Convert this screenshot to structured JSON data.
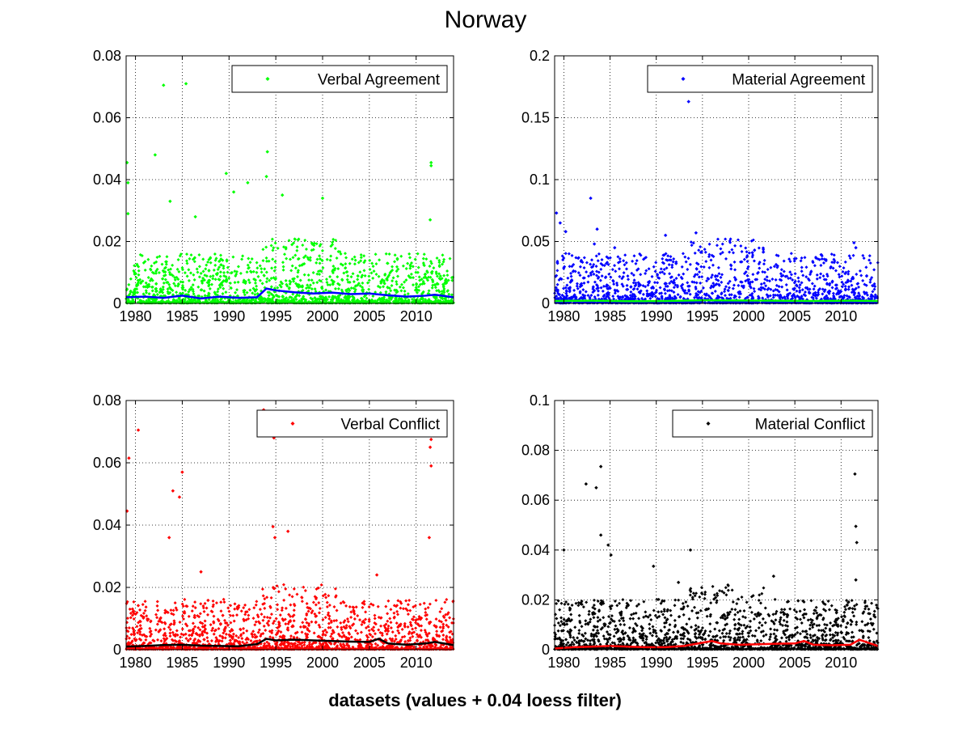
{
  "figure": {
    "title": "Norway",
    "xlabel": "datasets (values + 0.04 loess filter)"
  },
  "chart_data": [
    {
      "type": "scatter",
      "title": "",
      "xlabel": "",
      "ylabel": "",
      "xlim": [
        1979,
        2014
      ],
      "ylim": [
        0,
        0.08
      ],
      "xticks": [
        1980,
        1985,
        1990,
        1995,
        2000,
        2005,
        2010
      ],
      "yticks": [
        0,
        0.02,
        0.04,
        0.06,
        0.08
      ],
      "ytick_labels": [
        "0",
        "0.02",
        "0.04",
        "0.06",
        "0.08"
      ],
      "grid": true,
      "legend_position": "top-right",
      "series": [
        {
          "name": "Verbal Agreement",
          "color": "#00ff00",
          "marker": "diamond",
          "outliers": [
            [
              1979.1,
              0.0455
            ],
            [
              1979.2,
              0.039
            ],
            [
              1979.2,
              0.029
            ],
            [
              1982.1,
              0.048
            ],
            [
              1983.0,
              0.0705
            ],
            [
              1985.4,
              0.071
            ],
            [
              1983.7,
              0.033
            ],
            [
              1989.7,
              0.042
            ],
            [
              1994.1,
              0.049
            ],
            [
              1994.0,
              0.041
            ],
            [
              1995.7,
              0.035
            ],
            [
              1990.5,
              0.036
            ],
            [
              2000.0,
              0.034
            ],
            [
              2011.6,
              0.0455
            ],
            [
              2011.6,
              0.0445
            ],
            [
              2011.5,
              0.027
            ],
            [
              1986.4,
              0.028
            ],
            [
              1992.0,
              0.039
            ]
          ]
        },
        {
          "name": "",
          "color": "#0000ff",
          "line": true,
          "x": [
            1979,
            1981,
            1983,
            1985,
            1987,
            1989,
            1991,
            1993,
            1994,
            1995,
            1997,
            1999,
            2001,
            2003,
            2005,
            2007,
            2009,
            2011,
            2012,
            2014
          ],
          "y": [
            0.002,
            0.0022,
            0.0018,
            0.0025,
            0.0016,
            0.0022,
            0.0018,
            0.002,
            0.0048,
            0.0042,
            0.0036,
            0.0032,
            0.0035,
            0.003,
            0.0032,
            0.0026,
            0.0022,
            0.0025,
            0.0028,
            0.002
          ]
        }
      ]
    },
    {
      "type": "scatter",
      "title": "",
      "xlabel": "",
      "ylabel": "",
      "xlim": [
        1979,
        2014
      ],
      "ylim": [
        0,
        0.2
      ],
      "xticks": [
        1980,
        1985,
        1990,
        1995,
        2000,
        2005,
        2010
      ],
      "yticks": [
        0,
        0.05,
        0.1,
        0.15,
        0.2
      ],
      "ytick_labels": [
        "0",
        "0.05",
        "0.1",
        "0.15",
        "0.2"
      ],
      "grid": true,
      "legend_position": "top-right",
      "series": [
        {
          "name": "Material Agreement",
          "color": "#0000ff",
          "marker": "diamond",
          "outliers": [
            [
              1979.2,
              0.073
            ],
            [
              1979.6,
              0.065
            ],
            [
              1980.2,
              0.058
            ],
            [
              1982.9,
              0.085
            ],
            [
              1983.6,
              0.06
            ],
            [
              1993.5,
              0.163
            ],
            [
              1994.3,
              0.057
            ],
            [
              1991.0,
              0.055
            ],
            [
              1985.5,
              0.045
            ],
            [
              2000.4,
              0.041
            ],
            [
              2011.4,
              0.049
            ],
            [
              2011.6,
              0.045
            ],
            [
              1983.3,
              0.048
            ]
          ]
        },
        {
          "name": "",
          "color": "#00ff00",
          "line": true,
          "x": [
            1979,
            1983,
            1987,
            1991,
            1995,
            1999,
            2003,
            2007,
            2011,
            2014
          ],
          "y": [
            0.002,
            0.0022,
            0.0018,
            0.002,
            0.0025,
            0.0024,
            0.0022,
            0.002,
            0.0022,
            0.002
          ]
        }
      ]
    },
    {
      "type": "scatter",
      "title": "",
      "xlabel": "",
      "ylabel": "",
      "xlim": [
        1979,
        2014
      ],
      "ylim": [
        0,
        0.08
      ],
      "xticks": [
        1980,
        1985,
        1990,
        1995,
        2000,
        2005,
        2010
      ],
      "yticks": [
        0,
        0.02,
        0.04,
        0.06,
        0.08
      ],
      "ytick_labels": [
        "0",
        "0.02",
        "0.04",
        "0.06",
        "0.08"
      ],
      "grid": true,
      "legend_position": "top-right",
      "series": [
        {
          "name": "Verbal Conflict",
          "color": "#ff0000",
          "marker": "diamond",
          "outliers": [
            [
              1979.1,
              0.0445
            ],
            [
              1979.3,
              0.0615
            ],
            [
              1980.3,
              0.0705
            ],
            [
              1984.0,
              0.051
            ],
            [
              1984.7,
              0.049
            ],
            [
              1985.0,
              0.057
            ],
            [
              1983.6,
              0.036
            ],
            [
              1993.7,
              0.077
            ],
            [
              1994.8,
              0.068
            ],
            [
              1994.7,
              0.0395
            ],
            [
              1994.9,
              0.036
            ],
            [
              1996.3,
              0.038
            ],
            [
              2011.6,
              0.0675
            ],
            [
              2011.5,
              0.065
            ],
            [
              2011.6,
              0.059
            ],
            [
              2011.4,
              0.036
            ],
            [
              1987.0,
              0.025
            ],
            [
              2005.8,
              0.024
            ]
          ]
        },
        {
          "name": "",
          "color": "#000000",
          "line": true,
          "x": [
            1979,
            1981,
            1983,
            1985,
            1987,
            1989,
            1991,
            1993,
            1994,
            1995,
            1997,
            1999,
            2001,
            2003,
            2005,
            2006,
            2007,
            2009,
            2011,
            2012,
            2014
          ],
          "y": [
            0.001,
            0.0012,
            0.0015,
            0.0016,
            0.0013,
            0.0012,
            0.0011,
            0.0018,
            0.0035,
            0.003,
            0.0032,
            0.003,
            0.0028,
            0.0026,
            0.0025,
            0.0035,
            0.002,
            0.0016,
            0.002,
            0.0025,
            0.0015
          ]
        }
      ]
    },
    {
      "type": "scatter",
      "title": "",
      "xlabel": "",
      "ylabel": "",
      "xlim": [
        1979,
        2014
      ],
      "ylim": [
        0,
        0.1
      ],
      "xticks": [
        1980,
        1985,
        1990,
        1995,
        2000,
        2005,
        2010
      ],
      "yticks": [
        0,
        0.02,
        0.04,
        0.06,
        0.08,
        0.1
      ],
      "ytick_labels": [
        "0",
        "0.02",
        "0.04",
        "0.06",
        "0.08",
        "0.1"
      ],
      "grid": true,
      "legend_position": "top-right",
      "series": [
        {
          "name": "Material Conflict",
          "color": "#000000",
          "marker": "diamond",
          "outliers": [
            [
              1980.0,
              0.04
            ],
            [
              1982.4,
              0.0665
            ],
            [
              1983.5,
              0.065
            ],
            [
              1984.0,
              0.0735
            ],
            [
              1984.0,
              0.046
            ],
            [
              1984.8,
              0.042
            ],
            [
              1985.1,
              0.038
            ],
            [
              1989.7,
              0.0335
            ],
            [
              1993.7,
              0.04
            ],
            [
              2002.7,
              0.0295
            ],
            [
              2011.5,
              0.0705
            ],
            [
              2011.6,
              0.0495
            ],
            [
              2011.7,
              0.043
            ],
            [
              2011.6,
              0.028
            ],
            [
              1992.4,
              0.027
            ]
          ]
        },
        {
          "name": "",
          "color": "#ff0000",
          "line": true,
          "x": [
            1979,
            1981,
            1983,
            1985,
            1987,
            1989,
            1991,
            1993,
            1995,
            1996,
            1997,
            1999,
            2001,
            2003,
            2005,
            2006,
            2007,
            2009,
            2011,
            2012,
            2014
          ],
          "y": [
            0.0005,
            0.001,
            0.0012,
            0.0015,
            0.0012,
            0.001,
            0.001,
            0.0015,
            0.0028,
            0.0035,
            0.0025,
            0.002,
            0.0022,
            0.0024,
            0.0025,
            0.0035,
            0.002,
            0.0018,
            0.002,
            0.004,
            0.0015
          ]
        }
      ]
    }
  ]
}
